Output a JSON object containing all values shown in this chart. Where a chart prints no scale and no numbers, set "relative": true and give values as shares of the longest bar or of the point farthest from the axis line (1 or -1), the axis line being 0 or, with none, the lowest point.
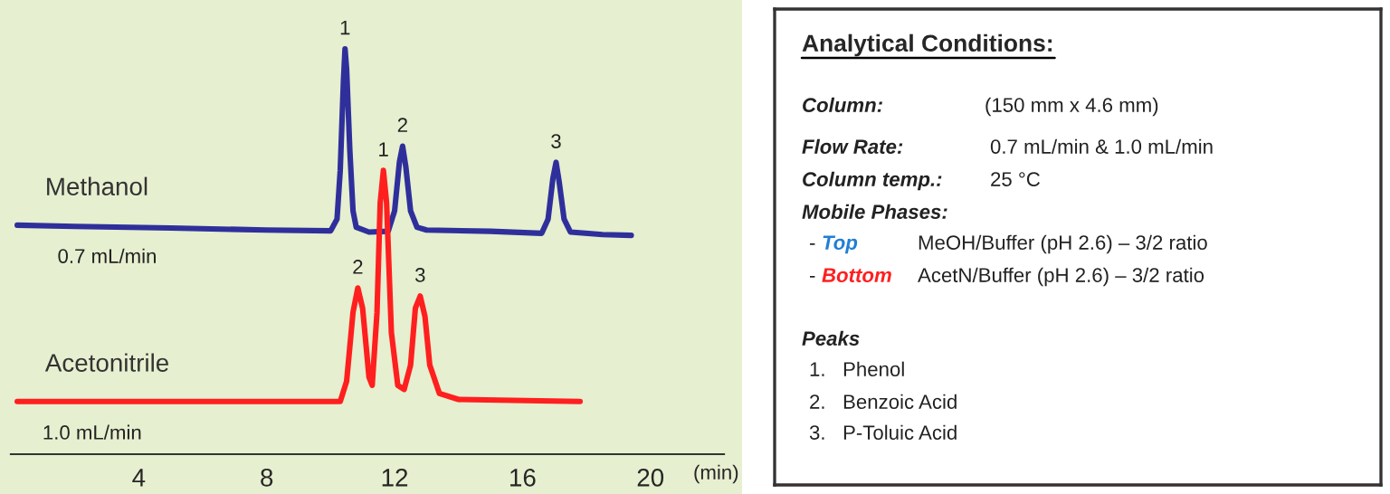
{
  "chart_data": [
    {
      "type": "line",
      "relative": true,
      "xlabel": "(min)",
      "xlim": [
        0,
        22.3
      ],
      "xticks": [
        4,
        8,
        12,
        16,
        20
      ],
      "grid": false,
      "legend": false,
      "marker": "none",
      "line_style": "solid",
      "series": [
        {
          "name": "Methanol",
          "color": "#2f2f9c",
          "x": [
            0.2,
            2,
            5,
            8,
            10.0,
            10.2,
            10.3,
            10.4,
            10.45,
            10.5,
            10.6,
            10.7,
            10.8,
            11.2,
            11.8,
            12.0,
            12.15,
            12.25,
            12.35,
            12.5,
            12.7,
            13,
            15,
            16.6,
            16.8,
            16.95,
            17.05,
            17.15,
            17.3,
            17.5,
            18.5,
            19.4
          ],
          "values": [
            0.565,
            0.562,
            0.558,
            0.553,
            0.551,
            0.58,
            0.7,
            0.92,
            1.0,
            0.95,
            0.75,
            0.6,
            0.56,
            0.548,
            0.55,
            0.6,
            0.72,
            0.76,
            0.71,
            0.6,
            0.56,
            0.553,
            0.55,
            0.545,
            0.58,
            0.68,
            0.72,
            0.67,
            0.58,
            0.548,
            0.542,
            0.54
          ]
        },
        {
          "name": "Acetonitrile",
          "color": "#ff1f1f",
          "x": [
            0.2,
            5,
            10.3,
            10.5,
            10.7,
            10.85,
            11.0,
            11.2,
            11.3,
            11.45,
            11.55,
            11.65,
            11.75,
            11.9,
            12.1,
            12.3,
            12.5,
            12.65,
            12.8,
            12.95,
            13.1,
            13.4,
            14,
            17.8
          ],
          "values": [
            0.13,
            0.13,
            0.13,
            0.18,
            0.35,
            0.41,
            0.36,
            0.19,
            0.17,
            0.35,
            0.62,
            0.7,
            0.62,
            0.3,
            0.17,
            0.16,
            0.22,
            0.36,
            0.39,
            0.34,
            0.22,
            0.15,
            0.135,
            0.13
          ]
        }
      ],
      "annotations": [
        "0.7 mL/min",
        "1.0 mL/min",
        {
          "text": "1",
          "x": 10.45,
          "y": 1.0
        },
        {
          "text": "2",
          "x": 12.25,
          "y": 0.76
        },
        {
          "text": "3",
          "x": 17.05,
          "y": 0.72
        },
        {
          "text": "1",
          "x": 11.65,
          "y": 0.7
        },
        {
          "text": "2",
          "x": 10.85,
          "y": 0.41
        },
        {
          "text": "3",
          "x": 12.8,
          "y": 0.39
        }
      ]
    },
    {
      "type": "other",
      "title": "Analytical Conditions:",
      "annotations": [
        "Column:",
        "(150 mm x 4.6 mm)",
        "Flow Rate:",
        "0.7 mL/min & 1.0 mL/min",
        "Column temp.:",
        "25 °C",
        "Mobile Phases:",
        "-",
        "Top",
        "MeOH/Buffer (pH 2.6) – 3/2 ratio",
        "-",
        "Bottom",
        "AcetN/Buffer (pH 2.6) – 3/2 ratio",
        "Peaks",
        "1.   Phenol",
        "2.   Benzoic Acid",
        "3.   P-Toluic Acid"
      ],
      "colors": [
        null,
        null,
        null,
        null,
        null,
        null,
        null,
        null,
        "#1f7fd6",
        null,
        null,
        "#ff1f1f",
        null,
        null,
        null,
        null,
        null
      ]
    }
  ]
}
